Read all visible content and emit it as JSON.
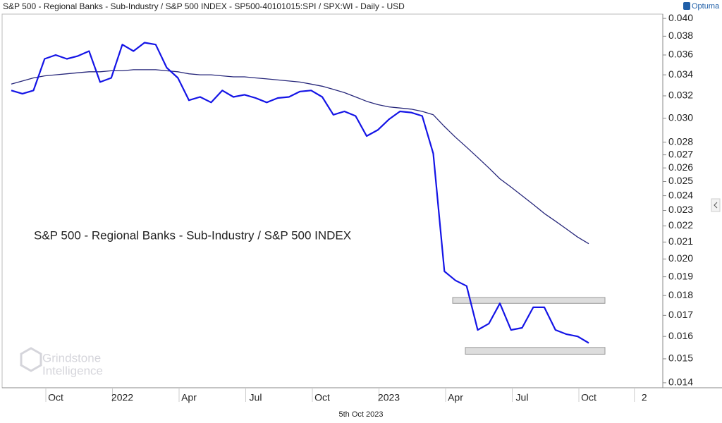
{
  "chart_data": {
    "type": "line",
    "title": "S&P 500 - Regional Banks - Sub-Industry / S&P 500 INDEX - SP500-40101015:SPI / SPX:WI - Daily - USD",
    "annotation": "S&P 500 - Regional Banks - Sub-Industry / S&P 500 INDEX",
    "date_label": "5th Oct 2023",
    "brand": "Optuma",
    "watermark": [
      "Grindstone",
      "Intelligence"
    ],
    "categories": [
      null,
      null,
      null,
      null,
      "Oct",
      null,
      null,
      null,
      null,
      null,
      "2022",
      null,
      null,
      null,
      null,
      null,
      "Apr",
      null,
      null,
      null,
      null,
      null,
      "Jul",
      null,
      null,
      null,
      null,
      null,
      "Oct",
      null,
      null,
      null,
      null,
      null,
      "2023",
      null,
      null,
      null,
      null,
      null,
      "Apr",
      null,
      null,
      null,
      null,
      null,
      "Jul",
      null,
      null,
      null,
      null,
      null,
      "Oct",
      null,
      null,
      null,
      null,
      "2"
    ],
    "series": [
      {
        "name": "S&P 500 - Regional Banks - Sub-Industry / S&P 500 INDEX",
        "color": "#1414e6",
        "values": [
          0.0325,
          0.0322,
          0.0325,
          0.0356,
          0.036,
          0.0356,
          0.0359,
          0.0364,
          0.0333,
          0.0337,
          0.0371,
          0.0364,
          0.0373,
          0.0371,
          0.0347,
          0.0337,
          0.0316,
          0.0319,
          0.0314,
          0.0325,
          0.0319,
          0.0321,
          0.0318,
          0.0314,
          0.0318,
          0.0319,
          0.0324,
          0.0325,
          0.0319,
          0.0303,
          0.0306,
          0.0302,
          0.0285,
          0.029,
          0.0299,
          0.0306,
          0.0305,
          0.0302,
          0.0271,
          0.0193,
          0.0188,
          0.0185,
          0.0163,
          0.0166,
          0.0176,
          0.0163,
          0.0164,
          0.0174,
          0.0174,
          0.0163,
          0.0161,
          0.016,
          0.0157,
          null,
          null,
          null,
          null,
          null
        ]
      },
      {
        "color": "#26267a",
        "values": [
          0.0331,
          0.0334,
          0.0337,
          0.0339,
          0.034,
          0.0341,
          0.0342,
          0.0343,
          0.0343,
          0.0344,
          0.0344,
          0.0345,
          0.0345,
          0.0345,
          0.0344,
          0.0343,
          0.0341,
          0.034,
          0.034,
          0.0339,
          0.0338,
          0.0338,
          0.0337,
          0.0336,
          0.0335,
          0.0334,
          0.0333,
          0.0331,
          0.0329,
          0.0326,
          0.0323,
          0.0319,
          0.0315,
          0.0312,
          0.031,
          0.0309,
          0.0308,
          0.0306,
          0.0303,
          0.0293,
          0.0284,
          0.0276,
          0.0268,
          0.026,
          0.0252,
          0.0246,
          0.024,
          0.0234,
          0.0228,
          0.0223,
          0.0218,
          0.0213,
          0.0209,
          null,
          null,
          null,
          null,
          null
        ]
      }
    ],
    "range_boxes": [
      [
        0.0176,
        0.0179
      ],
      [
        0.0152,
        0.0155
      ]
    ],
    "ylim": [
      0.0138,
      0.0405
    ],
    "log_y": true,
    "yticks": [
      0.014,
      0.015,
      0.016,
      0.017,
      0.018,
      0.019,
      {
        "value": 0.02,
        "label": "0.020"
      },
      0.021,
      0.022,
      0.023,
      0.024,
      0.025,
      0.026,
      0.027,
      0.028,
      {
        "value": 0.03,
        "label": "0.030"
      },
      0.032,
      0.034,
      0.036,
      0.038,
      {
        "value": 0.04,
        "label": "0.040"
      }
    ]
  }
}
